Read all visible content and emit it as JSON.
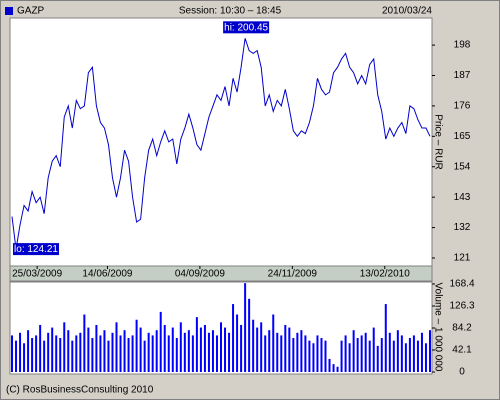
{
  "header": {
    "session": "Session: 10:30 – 18:45",
    "date": "2010/03/24"
  },
  "footer": "(C) RosBusinessConsulting 2010",
  "chart_data": [
    {
      "type": "line",
      "ylabel": "Price – RUR",
      "xlim": [
        -0.5,
        104.5
      ],
      "xticks": [
        {
          "value": 6.25,
          "label": "25/03/2009"
        },
        {
          "value": 23.75,
          "label": "14/06/2009"
        },
        {
          "value": 46.75,
          "label": "04/09/2009"
        },
        {
          "value": 69.75,
          "label": "24/11/2009"
        },
        {
          "value": 92.75,
          "label": "13/02/2010"
        }
      ],
      "ylim": [
        118.1,
        207.8
      ],
      "yticks": [
        121,
        132,
        143,
        154,
        165,
        176,
        187,
        198
      ],
      "annotations": [
        {
          "text": "hi: 200.45",
          "x": 58,
          "y": 200.45
        },
        {
          "text": "lo: 124.21",
          "x": 1,
          "y": 124.21
        }
      ],
      "series": [
        {
          "name": "GAZP",
          "color": "#0000cc",
          "values": [
            136,
            124.21,
            133,
            140,
            138,
            145,
            141,
            143,
            137,
            150,
            156,
            158,
            154,
            172,
            176,
            168,
            178,
            175,
            176,
            188,
            190,
            176,
            170,
            168,
            162,
            150,
            143,
            150,
            160,
            156,
            143,
            134,
            135,
            150,
            160,
            164,
            158,
            163,
            167,
            163,
            164,
            155,
            164,
            168,
            173,
            168,
            162,
            160,
            166,
            172,
            176,
            180,
            178,
            183,
            176,
            186,
            181,
            190,
            200.45,
            196,
            195,
            196,
            190,
            176,
            180,
            174,
            178,
            176,
            182,
            175,
            167,
            165,
            167,
            166,
            170,
            176,
            186,
            182,
            180,
            181,
            188,
            190,
            193,
            195,
            190,
            188,
            184,
            187,
            184,
            191,
            193,
            180,
            174,
            164,
            168,
            165,
            168,
            170,
            166,
            176,
            175,
            171,
            168,
            168,
            165
          ]
        }
      ]
    },
    {
      "type": "bar",
      "ylabel": "Volume – 1 000 000",
      "xlim": [
        -0.5,
        104.5
      ],
      "ylim": [
        0,
        172.2
      ],
      "yticks": [
        0,
        42.1,
        84.2,
        126.3,
        168.4
      ],
      "color": "#0000ff",
      "values": [
        70,
        60,
        75,
        55,
        80,
        65,
        70,
        90,
        60,
        75,
        85,
        70,
        65,
        95,
        80,
        60,
        70,
        75,
        110,
        85,
        65,
        90,
        70,
        80,
        60,
        75,
        95,
        70,
        80,
        65,
        70,
        100,
        85,
        60,
        75,
        70,
        80,
        115,
        90,
        70,
        85,
        65,
        95,
        75,
        80,
        70,
        105,
        85,
        90,
        75,
        80,
        70,
        95,
        85,
        75,
        130,
        110,
        90,
        170,
        140,
        100,
        85,
        95,
        70,
        80,
        110,
        75,
        70,
        90,
        85,
        65,
        75,
        80,
        70,
        60,
        55,
        70,
        65,
        60,
        25,
        15,
        10,
        60,
        70,
        55,
        80,
        65,
        70,
        75,
        60,
        85,
        50,
        65,
        130,
        75,
        60,
        80,
        70,
        55,
        65,
        70,
        60,
        75,
        55,
        80
      ]
    }
  ]
}
